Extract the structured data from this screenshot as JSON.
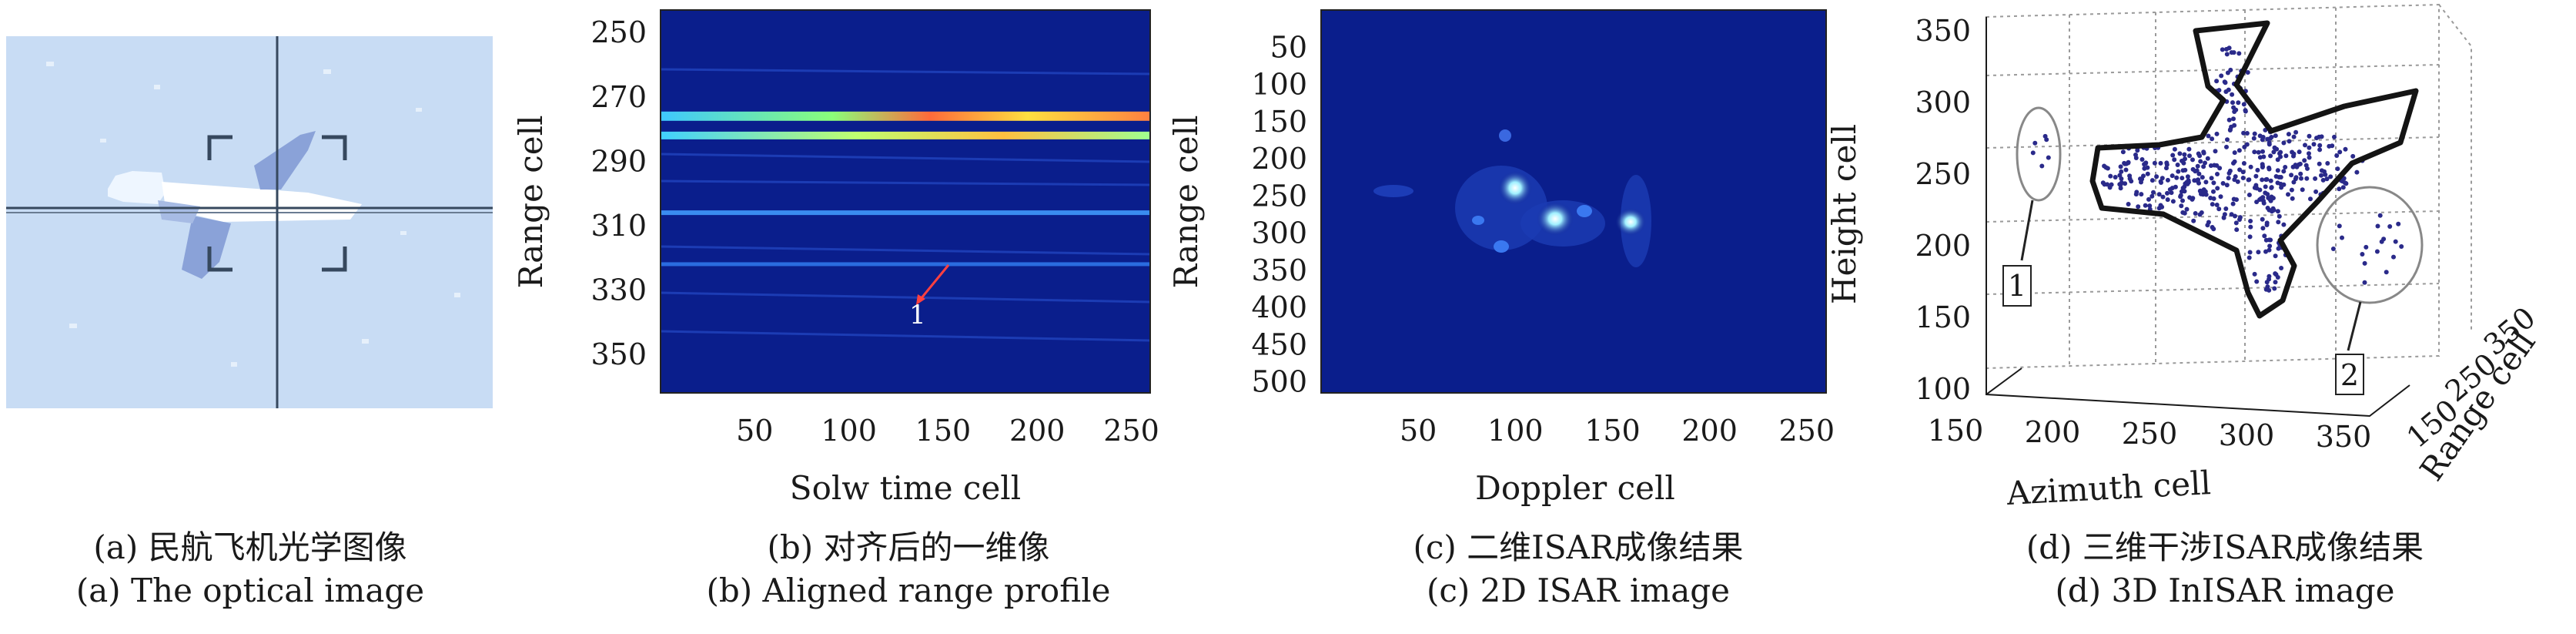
{
  "panels": {
    "a": {
      "caption_cn": "(a) 民航飞机光学图像",
      "caption_en": "(a) The optical image"
    },
    "b": {
      "caption_cn": "(b) 对齐后的一维像",
      "caption_en": "(b) Aligned range profile",
      "annotation": "1"
    },
    "c": {
      "caption_cn": "(c) 二维ISAR成像结果",
      "caption_en": "(c) 2D ISAR image"
    },
    "d": {
      "caption_cn": "(d) 三维干涉ISAR成像结果",
      "caption_en": "(d) 3D InISAR image",
      "annotation_1": "1",
      "annotation_2": "2"
    }
  },
  "chart_data": [
    {
      "panel": "b",
      "type": "heatmap",
      "xlabel": "Solw time cell",
      "ylabel": "Range cell",
      "x_ticks": [
        50,
        100,
        150,
        200,
        250
      ],
      "y_ticks": [
        250,
        270,
        290,
        310,
        330,
        350
      ],
      "xlim": [
        0,
        260
      ],
      "ylim": [
        243,
        362
      ],
      "y_inverted": true,
      "bright_range_cells": [
        276,
        282,
        306,
        322
      ]
    },
    {
      "panel": "c",
      "type": "heatmap",
      "xlabel": "Doppler cell",
      "ylabel": "Range cell",
      "x_ticks": [
        50,
        100,
        150,
        200,
        250
      ],
      "y_ticks": [
        50,
        100,
        150,
        200,
        250,
        300,
        350,
        400,
        450,
        500
      ],
      "xlim": [
        0,
        260
      ],
      "ylim": [
        0,
        515
      ],
      "y_inverted": true
    },
    {
      "panel": "d",
      "type": "scatter",
      "xlabel": "Azimuth cell",
      "ylabel": "Height cell",
      "zlabel": "Range cell",
      "x_ticks": [
        150,
        200,
        250,
        300,
        350
      ],
      "y_ticks": [
        100,
        150,
        200,
        250,
        300,
        350
      ],
      "z_ticks": [
        150,
        250,
        350
      ],
      "grid": true
    }
  ],
  "colors": {
    "sky": "#c8dcf4",
    "heatmap_background": "#0a1e8c",
    "scatter_points": "#2a2a8a",
    "outline": "#141414"
  }
}
